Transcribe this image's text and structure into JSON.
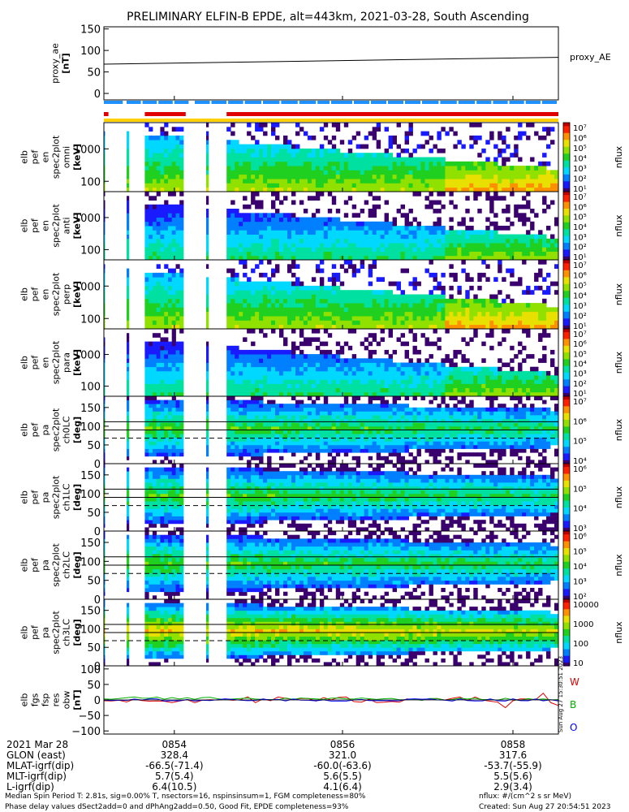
{
  "chart_data": {
    "type": "heatmap",
    "title": "PRELIMINARY ELFIN-B EPDE, alt=443km, 2021-03-28, South Ascending",
    "time_ticks": [
      "0854",
      "0856",
      "0858"
    ],
    "panels": [
      {
        "id": "proxy",
        "ylabel_lines": [
          "proxy_ae",
          "[nT]"
        ],
        "yticks": [
          "150",
          "100",
          "50",
          "0"
        ],
        "right_label": "proxy_AE",
        "series": [
          {
            "x": [
              0,
              1
            ],
            "y": [
              68,
              84
            ]
          }
        ],
        "ylim": [
          -15,
          155
        ]
      },
      {
        "id": "pef-omni",
        "ylabel_lines": [
          "elb",
          "pef",
          "en",
          "spec2plot",
          "omni",
          "[keV]"
        ],
        "yticks": [
          "1000",
          "100"
        ],
        "scale": "log",
        "cbar_label": "nflux",
        "cbar_ticks": [
          "10⁷",
          "10⁶",
          "10⁵",
          "10⁴",
          "10³",
          "10²",
          "10¹"
        ]
      },
      {
        "id": "pef-anti",
        "ylabel_lines": [
          "elb",
          "pef",
          "en",
          "spec2plot",
          "anti",
          "[keV]"
        ],
        "yticks": [
          "1000",
          "100"
        ],
        "scale": "log",
        "cbar_label": "nflux",
        "cbar_ticks": [
          "10⁷",
          "10⁶",
          "10⁵",
          "10⁴",
          "10³",
          "10²",
          "10¹"
        ]
      },
      {
        "id": "pef-perp",
        "ylabel_lines": [
          "elb",
          "pef",
          "en",
          "spec2plot",
          "perp",
          "[keV]"
        ],
        "yticks": [
          "1000",
          "100"
        ],
        "scale": "log",
        "cbar_label": "nflux",
        "cbar_ticks": [
          "10⁷",
          "10⁶",
          "10⁵",
          "10⁴",
          "10³",
          "10²",
          "10¹"
        ]
      },
      {
        "id": "pef-para",
        "ylabel_lines": [
          "elb",
          "pef",
          "en",
          "spec2plot",
          "para",
          "[keV]"
        ],
        "yticks": [
          "1000",
          "100"
        ],
        "scale": "log",
        "cbar_label": "nflux",
        "cbar_ticks": [
          "10⁷",
          "10⁶",
          "10⁵",
          "10⁴",
          "10³",
          "10²",
          "10¹"
        ]
      },
      {
        "id": "ch0LC",
        "ylabel_lines": [
          "elb",
          "pef",
          "pa",
          "spec2plot",
          "ch0LC",
          "[deg]"
        ],
        "yticks": [
          "150",
          "100",
          "50",
          "0"
        ],
        "ylim": [
          0,
          180
        ],
        "cbar_label": "nflux",
        "cbar_ticks": [
          "10⁷",
          "10⁶",
          "10⁵",
          "10⁴"
        ],
        "lines": [
          68,
          90,
          112
        ]
      },
      {
        "id": "ch1LC",
        "ylabel_lines": [
          "elb",
          "pef",
          "pa",
          "spec2plot",
          "ch1LC",
          "[deg]"
        ],
        "yticks": [
          "150",
          "100",
          "50",
          "0"
        ],
        "ylim": [
          0,
          180
        ],
        "cbar_label": "nflux",
        "cbar_ticks": [
          "10⁶",
          "10⁵",
          "10⁴",
          "10³"
        ],
        "lines": [
          68,
          90,
          112
        ]
      },
      {
        "id": "ch2LC",
        "ylabel_lines": [
          "elb",
          "pef",
          "pa",
          "spec2plot",
          "ch2LC",
          "[deg]"
        ],
        "yticks": [
          "150",
          "100",
          "50",
          "0"
        ],
        "ylim": [
          0,
          180
        ],
        "cbar_label": "nflux",
        "cbar_ticks": [
          "10⁶",
          "10⁵",
          "10⁴",
          "10³",
          "10²"
        ],
        "lines": [
          68,
          90,
          112
        ]
      },
      {
        "id": "ch3LC",
        "ylabel_lines": [
          "elb",
          "pef",
          "pa",
          "spec2plot",
          "ch3LC",
          "[deg]"
        ],
        "yticks": [
          "150",
          "100",
          "50",
          "0"
        ],
        "ylim": [
          0,
          180
        ],
        "cbar_label": "nflux",
        "cbar_ticks": [
          "10000",
          "1000",
          "100",
          "10"
        ],
        "lines": [
          68,
          90,
          112
        ]
      },
      {
        "id": "fgm",
        "ylabel_lines": [
          "elb",
          "fgs",
          "fsp",
          "res",
          "obw",
          "[nT]"
        ],
        "yticks": [
          "100",
          "50",
          "0",
          "−50",
          "−100"
        ],
        "ylim": [
          -110,
          110
        ],
        "legend": [
          {
            "name": "W",
            "color": "#e00000"
          },
          {
            "name": "B",
            "color": "#00b000"
          },
          {
            "name": "O",
            "color": "#0000ff"
          }
        ],
        "side_text": "Sun Aug 27 15:30:51 2023"
      }
    ],
    "orbit_table": {
      "rows": [
        {
          "label": "2021 Mar 28",
          "values": [
            "0854",
            "0856",
            "0858"
          ]
        },
        {
          "label": "GLON (east)",
          "values": [
            "328.4",
            "321.0",
            "317.6"
          ]
        },
        {
          "label": "MLAT-igrf(dip)",
          "values": [
            "-66.5(-71.4)",
            "-60.0(-63.6)",
            "-53.7(-55.9)"
          ]
        },
        {
          "label": "MLT-igrf(dip)",
          "values": [
            "5.7(5.4)",
            "5.6(5.5)",
            "5.5(5.6)"
          ]
        },
        {
          "label": "L-igrf(dip)",
          "values": [
            "6.4(10.5)",
            "4.1(6.4)",
            "2.9(3.4)"
          ]
        }
      ]
    },
    "footer": {
      "line1_left": "Median Spin Period T: 2.81s, sig=0.00% T, nsectors=16, nspinsinsum=1, FGM completeness=80%",
      "line2_left": "Phase delay values dSect2add=0 and dPhAng2add=0.50, Good Fit, EPDE completeness=93%",
      "line1_right": "nflux: #/(cm^2 s sr MeV)",
      "line2_right": "Created: Sun Aug 27 20:54:51 2023"
    }
  }
}
